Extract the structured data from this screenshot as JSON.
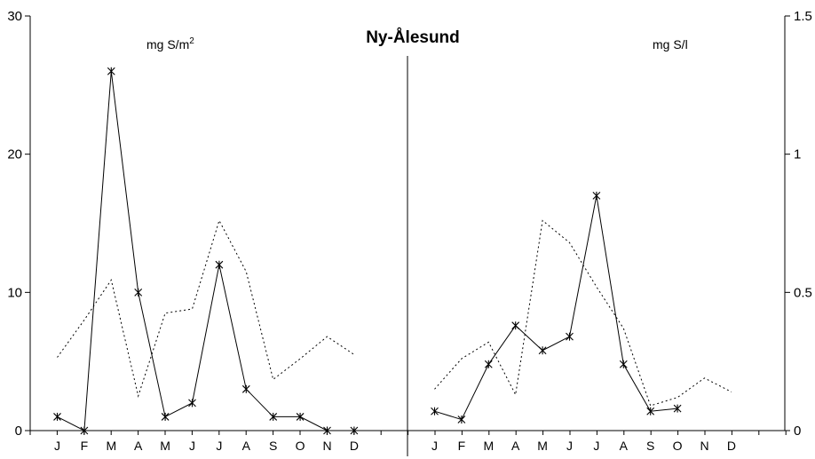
{
  "chart_data": {
    "type": "line",
    "title": "Ny-Ålesund",
    "months": [
      "J",
      "F",
      "M",
      "A",
      "M",
      "J",
      "J",
      "A",
      "S",
      "O",
      "N",
      "D"
    ],
    "panels": [
      {
        "unit_label": "mg S/m",
        "unit_sup": "2",
        "y_axis": "left",
        "ylim": [
          0,
          30
        ],
        "yticks": [
          0,
          10,
          20,
          30
        ],
        "series": [
          {
            "style": "solid-star",
            "values": [
              1.0,
              0.0,
              26.0,
              10.0,
              1.0,
              2.0,
              12.0,
              3.0,
              1.0,
              1.0,
              0.0,
              0.0
            ]
          },
          {
            "style": "dotted",
            "values": [
              5.3,
              8.0,
              10.9,
              2.5,
              8.5,
              8.8,
              15.2,
              11.5,
              3.7,
              5.2,
              6.8,
              5.5
            ]
          }
        ]
      },
      {
        "unit_label": "mg S/l",
        "y_axis": "right",
        "ylim": [
          0,
          1.5
        ],
        "yticks": [
          0,
          0.5,
          1,
          1.5
        ],
        "series": [
          {
            "style": "solid-star",
            "values": [
              0.07,
              0.04,
              0.24,
              0.38,
              0.29,
              0.34,
              0.85,
              0.24,
              0.07,
              0.08,
              null,
              null
            ]
          },
          {
            "style": "dotted",
            "values": [
              0.15,
              0.26,
              0.32,
              0.13,
              0.76,
              0.68,
              0.52,
              0.37,
              0.09,
              0.12,
              0.19,
              0.14
            ]
          }
        ]
      }
    ]
  }
}
